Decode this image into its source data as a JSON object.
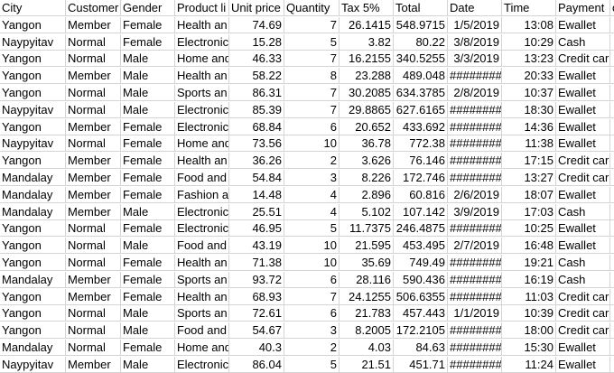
{
  "headers": [
    "City",
    "Customer",
    "Gender",
    "Product li",
    "Unit price",
    "Quantity",
    "Tax 5%",
    "Total",
    "Date",
    "Time",
    "Payment",
    "c"
  ],
  "rows": [
    [
      "Yangon",
      "Member",
      "Female",
      "Health an",
      "74.69",
      "7",
      "26.1415",
      "548.9715",
      "1/5/2019",
      "13:08",
      "Ewallet"
    ],
    [
      "Naypyitav",
      "Normal",
      "Female",
      "Electronic",
      "15.28",
      "5",
      "3.82",
      "80.22",
      "3/8/2019",
      "10:29",
      "Cash"
    ],
    [
      "Yangon",
      "Normal",
      "Male",
      "Home and",
      "46.33",
      "7",
      "16.2155",
      "340.5255",
      "3/3/2019",
      "13:23",
      "Credit card"
    ],
    [
      "Yangon",
      "Member",
      "Male",
      "Health an",
      "58.22",
      "8",
      "23.288",
      "489.048",
      "########",
      "20:33",
      "Ewallet"
    ],
    [
      "Yangon",
      "Normal",
      "Male",
      "Sports an",
      "86.31",
      "7",
      "30.2085",
      "634.3785",
      "2/8/2019",
      "10:37",
      "Ewallet"
    ],
    [
      "Naypyitav",
      "Normal",
      "Male",
      "Electronic",
      "85.39",
      "7",
      "29.8865",
      "627.6165",
      "########",
      "18:30",
      "Ewallet"
    ],
    [
      "Yangon",
      "Member",
      "Female",
      "Electronic",
      "68.84",
      "6",
      "20.652",
      "433.692",
      "########",
      "14:36",
      "Ewallet"
    ],
    [
      "Naypyitav",
      "Normal",
      "Female",
      "Home and",
      "73.56",
      "10",
      "36.78",
      "772.38",
      "########",
      "11:38",
      "Ewallet"
    ],
    [
      "Yangon",
      "Member",
      "Female",
      "Health an",
      "36.26",
      "2",
      "3.626",
      "76.146",
      "########",
      "17:15",
      "Credit card"
    ],
    [
      "Mandalay",
      "Member",
      "Female",
      "Food and",
      "54.84",
      "3",
      "8.226",
      "172.746",
      "########",
      "13:27",
      "Credit card"
    ],
    [
      "Mandalay",
      "Member",
      "Female",
      "Fashion ac",
      "14.48",
      "4",
      "2.896",
      "60.816",
      "2/6/2019",
      "18:07",
      "Ewallet"
    ],
    [
      "Mandalay",
      "Member",
      "Male",
      "Electronic",
      "25.51",
      "4",
      "5.102",
      "107.142",
      "3/9/2019",
      "17:03",
      "Cash"
    ],
    [
      "Yangon",
      "Normal",
      "Female",
      "Electronic",
      "46.95",
      "5",
      "11.7375",
      "246.4875",
      "########",
      "10:25",
      "Ewallet"
    ],
    [
      "Yangon",
      "Normal",
      "Male",
      "Food and",
      "43.19",
      "10",
      "21.595",
      "453.495",
      "2/7/2019",
      "16:48",
      "Ewallet"
    ],
    [
      "Yangon",
      "Normal",
      "Female",
      "Health an",
      "71.38",
      "10",
      "35.69",
      "749.49",
      "########",
      "19:21",
      "Cash"
    ],
    [
      "Mandalay",
      "Member",
      "Female",
      "Sports an",
      "93.72",
      "6",
      "28.116",
      "590.436",
      "########",
      "16:19",
      "Cash"
    ],
    [
      "Yangon",
      "Member",
      "Female",
      "Health an",
      "68.93",
      "7",
      "24.1255",
      "506.6355",
      "########",
      "11:03",
      "Credit card"
    ],
    [
      "Yangon",
      "Normal",
      "Male",
      "Sports an",
      "72.61",
      "6",
      "21.783",
      "457.443",
      "1/1/2019",
      "10:39",
      "Credit card"
    ],
    [
      "Yangon",
      "Normal",
      "Male",
      "Food and",
      "54.67",
      "3",
      "8.2005",
      "172.2105",
      "########",
      "18:00",
      "Credit card"
    ],
    [
      "Mandalay",
      "Normal",
      "Female",
      "Home and",
      "40.3",
      "2",
      "4.03",
      "84.63",
      "########",
      "15:30",
      "Ewallet"
    ],
    [
      "Naypyitav",
      "Member",
      "Male",
      "Electronic",
      "86.04",
      "5",
      "21.51",
      "451.71",
      "########",
      "11:24",
      "Ewallet"
    ]
  ]
}
